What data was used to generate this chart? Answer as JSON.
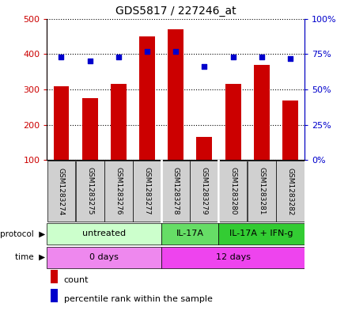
{
  "title": "GDS5817 / 227246_at",
  "samples": [
    "GSM1283274",
    "GSM1283275",
    "GSM1283276",
    "GSM1283277",
    "GSM1283278",
    "GSM1283279",
    "GSM1283280",
    "GSM1283281",
    "GSM1283282"
  ],
  "counts": [
    310,
    275,
    315,
    450,
    470,
    165,
    315,
    370,
    268
  ],
  "percentiles": [
    73,
    70,
    73,
    77,
    77,
    66,
    73,
    73,
    72
  ],
  "ylim_left": [
    100,
    500
  ],
  "ylim_right": [
    0,
    100
  ],
  "yticks_left": [
    100,
    200,
    300,
    400,
    500
  ],
  "yticks_right": [
    0,
    25,
    50,
    75,
    100
  ],
  "bar_color": "#cc0000",
  "dot_color": "#0000cc",
  "grid_color": "black",
  "tick_label_color_left": "#cc0000",
  "tick_label_color_right": "#0000cc",
  "sample_box_color": "#d0d0d0",
  "proto_spans": [
    {
      "start": 0,
      "end": 4,
      "label": "untreated",
      "color": "#ccffcc"
    },
    {
      "start": 4,
      "end": 6,
      "label": "IL-17A",
      "color": "#66dd66"
    },
    {
      "start": 6,
      "end": 9,
      "label": "IL-17A + IFN-g",
      "color": "#33cc33"
    }
  ],
  "time_spans": [
    {
      "start": 0,
      "end": 4,
      "label": "0 days",
      "color": "#ee88ee"
    },
    {
      "start": 4,
      "end": 9,
      "label": "12 days",
      "color": "#ee44ee"
    }
  ],
  "legend_count_color": "#cc0000",
  "legend_dot_color": "#0000cc",
  "title_fontsize": 10,
  "axis_fontsize": 8,
  "sample_fontsize": 6.5,
  "legend_fontsize": 8
}
